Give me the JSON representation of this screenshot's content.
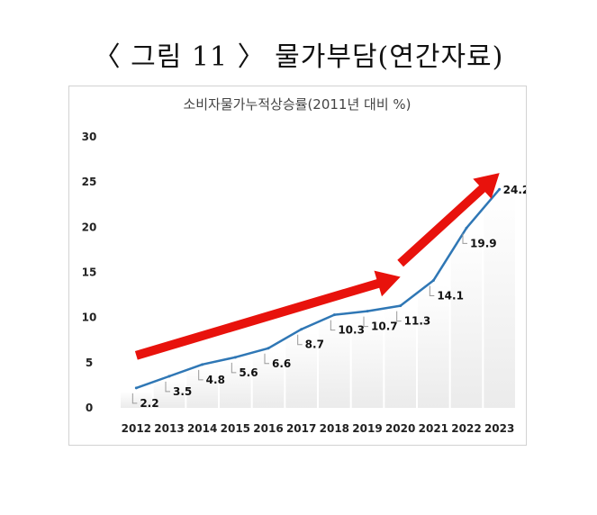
{
  "figure_caption": "〈 그림 11 〉 물가부담(연간자료)",
  "chart_data": {
    "type": "line",
    "title": "소비자물가누적상승률(2011년 대비 %)",
    "xlabel": "",
    "ylabel": "",
    "categories": [
      "2012",
      "2013",
      "2014",
      "2015",
      "2016",
      "2017",
      "2018",
      "2019",
      "2020",
      "2021",
      "2022",
      "2023"
    ],
    "values": [
      2.2,
      3.5,
      4.8,
      5.6,
      6.6,
      8.7,
      10.3,
      10.7,
      11.3,
      14.1,
      19.9,
      24.2
    ],
    "data_labels": [
      "2.2",
      "3.5",
      "4.8",
      "5.6",
      "6.6",
      "8.7",
      "10.3",
      "10.7",
      "11.3",
      "14.1",
      "19.9",
      "24.2"
    ],
    "ylim": [
      0,
      30
    ],
    "yticks": [
      0,
      5,
      10,
      15,
      20,
      25,
      30
    ],
    "grid": false,
    "line_color": "#2f77b5",
    "annotations": [
      {
        "type": "arrow",
        "color": "#e8120c",
        "from": {
          "x": "2012",
          "y": 5.8
        },
        "to": {
          "x": "2020",
          "y": 14.5
        }
      },
      {
        "type": "arrow",
        "color": "#e8120c",
        "from": {
          "x": "2020",
          "y": 16
        },
        "to": {
          "x": "2023",
          "y": 26
        }
      }
    ]
  }
}
